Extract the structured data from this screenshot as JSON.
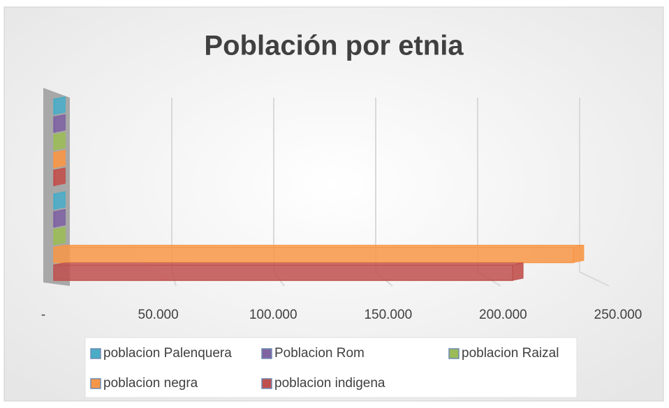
{
  "chart_data": {
    "type": "bar",
    "orientation": "horizontal",
    "title": "Población por etnia",
    "categories": [
      null,
      null
    ],
    "series": [
      {
        "name": "poblacion Palenquera",
        "color": "#4bacc6",
        "values": [
          500,
          500
        ]
      },
      {
        "name": "Poblacion Rom",
        "color": "#8064a2",
        "values": [
          500,
          500
        ]
      },
      {
        "name": "poblacion Raizal",
        "color": "#9bbb59",
        "values": [
          500,
          500
        ]
      },
      {
        "name": "poblacion negra",
        "color": "#f79646",
        "values": [
          500,
          240000
        ]
      },
      {
        "name": "poblacion indigena",
        "color": "#c0504d",
        "values": [
          500,
          212000
        ]
      }
    ],
    "xlim": [
      0,
      250000
    ],
    "xticks": [
      {
        "value": 0,
        "label": "-"
      },
      {
        "value": 50000,
        "label": "50.000"
      },
      {
        "value": 100000,
        "label": "100.000"
      },
      {
        "value": 150000,
        "label": "150.000"
      },
      {
        "value": 200000,
        "label": "200.000"
      },
      {
        "value": 250000,
        "label": "250.000"
      }
    ],
    "grid": true
  }
}
